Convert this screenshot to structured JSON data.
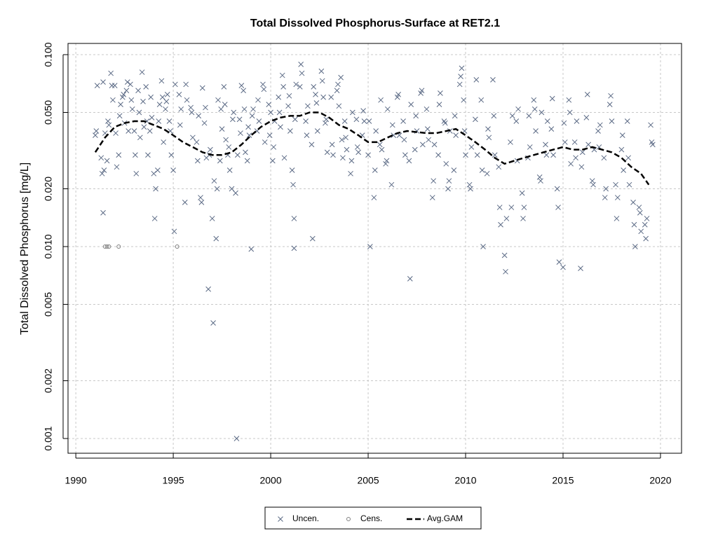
{
  "chart_data": {
    "type": "scatter",
    "title": "Total Dissolved Phosphorus-Surface at RET2.1",
    "y_label": "Total Dissolved Phosphorus [mg/L]",
    "log_y": true,
    "grid": true,
    "legend": "bottom",
    "xlim": [
      1989.6,
      2021.08
    ],
    "ylim": [
      0.000838,
      0.1144
    ],
    "xticks": [
      1990,
      1995,
      2000,
      2005,
      2010,
      2015,
      2020
    ],
    "yticks": [
      {
        "value": 0.1,
        "label": "0.100"
      },
      {
        "value": 0.05,
        "label": "0.050"
      },
      {
        "value": 0.02,
        "label": "0.020"
      },
      {
        "value": 0.01,
        "label": "0.010"
      },
      0.005,
      0.002,
      0.001
    ],
    "series": [
      {
        "name": "Uncen.",
        "marker": "x",
        "color": "#5b6a85",
        "x": [
          1991.0,
          1991.05,
          1991.1,
          1991.3,
          1991.35,
          1991.4,
          1991.4,
          1991.45,
          1991.5,
          1991.6,
          1991.65,
          1991.7,
          1991.8,
          1991.85,
          1991.9,
          1992.0,
          1992.05,
          1992.1,
          1992.2,
          1992.25,
          1992.3,
          1992.4,
          1992.45,
          1992.5,
          1992.6,
          1992.65,
          1992.7,
          1992.8,
          1992.85,
          1992.9,
          1993.0,
          1993.05,
          1993.1,
          1993.2,
          1993.25,
          1993.3,
          1993.4,
          1993.45,
          1993.5,
          1993.6,
          1993.65,
          1993.7,
          1993.8,
          1993.85,
          1993.9,
          1994.0,
          1994.05,
          1994.1,
          1994.2,
          1994.25,
          1994.3,
          1994.4,
          1994.45,
          1994.5,
          1994.6,
          1994.65,
          1994.7,
          1994.8,
          1994.85,
          1994.9,
          1995.0,
          1995.05,
          1995.1,
          1995.3,
          1995.35,
          1995.4,
          1995.6,
          1995.65,
          1995.7,
          1995.9,
          1995.95,
          1996.0,
          1996.2,
          1996.25,
          1996.3,
          1996.4,
          1996.45,
          1996.5,
          1996.6,
          1996.65,
          1996.7,
          1996.8,
          1996.85,
          1996.9,
          1997.0,
          1997.05,
          1997.1,
          1997.2,
          1997.25,
          1997.3,
          1997.4,
          1997.45,
          1997.5,
          1997.6,
          1997.65,
          1997.7,
          1997.8,
          1997.85,
          1997.9,
          1998.0,
          1998.05,
          1998.1,
          1998.2,
          1998.25,
          1998.3,
          1998.4,
          1998.45,
          1998.5,
          1998.6,
          1998.65,
          1998.7,
          1998.8,
          1998.85,
          1998.9,
          1999.0,
          1999.05,
          1999.1,
          1999.3,
          1999.35,
          1999.4,
          1999.6,
          1999.65,
          1999.7,
          1999.9,
          1999.95,
          2000.0,
          2000.1,
          2000.15,
          2000.2,
          2000.4,
          2000.45,
          2000.5,
          2000.6,
          2000.65,
          2000.7,
          2000.9,
          2000.95,
          2001.0,
          2001.1,
          2001.15,
          2001.2,
          2001.2,
          2001.25,
          2001.3,
          2001.5,
          2001.55,
          2001.6,
          2001.8,
          2001.85,
          2001.9,
          2002.1,
          2002.15,
          2002.2,
          2002.3,
          2002.35,
          2002.4,
          2002.6,
          2002.65,
          2002.7,
          2002.8,
          2002.85,
          2002.9,
          2003.1,
          2003.15,
          2003.2,
          2003.4,
          2003.45,
          2003.5,
          2003.6,
          2003.65,
          2003.7,
          2003.8,
          2003.85,
          2003.9,
          2004.1,
          2004.15,
          2004.2,
          2004.4,
          2004.45,
          2004.5,
          2004.7,
          2004.75,
          2004.8,
          2005.0,
          2005.05,
          2005.1,
          2005.3,
          2005.35,
          2005.4,
          2005.6,
          2005.65,
          2005.7,
          2005.9,
          2005.95,
          2006.0,
          2006.2,
          2006.25,
          2006.3,
          2006.5,
          2006.55,
          2006.6,
          2006.8,
          2006.85,
          2006.9,
          2007.1,
          2007.15,
          2007.2,
          2007.4,
          2007.45,
          2007.5,
          2007.7,
          2007.75,
          2007.8,
          2008.0,
          2008.05,
          2008.1,
          2008.3,
          2008.35,
          2008.4,
          2008.6,
          2008.65,
          2008.7,
          2008.9,
          2008.95,
          2009.0,
          2009.1,
          2009.15,
          2009.2,
          2009.4,
          2009.45,
          2009.5,
          2009.7,
          2009.75,
          2009.8,
          2009.9,
          2009.95,
          2010.0,
          2010.2,
          2010.25,
          2010.3,
          2010.5,
          2010.55,
          2010.6,
          2010.8,
          2010.85,
          2010.9,
          2011.1,
          2011.15,
          2011.2,
          2011.4,
          2011.45,
          2011.5,
          2011.7,
          2011.75,
          2011.8,
          2012.0,
          2012.05,
          2012.1,
          2012.3,
          2012.35,
          2012.4,
          2012.6,
          2012.65,
          2012.7,
          2012.9,
          2012.95,
          2013.0,
          2013.2,
          2013.25,
          2013.3,
          2013.5,
          2013.55,
          2013.6,
          2013.8,
          2013.85,
          2013.9,
          2014.1,
          2014.15,
          2014.2,
          2014.4,
          2014.45,
          2014.5,
          2014.7,
          2014.75,
          2014.8,
          2015.0,
          2015.05,
          2015.1,
          2015.3,
          2015.35,
          2015.4,
          2015.6,
          2015.65,
          2015.7,
          2015.9,
          2015.95,
          2016.0,
          2016.2,
          2016.25,
          2016.3,
          2016.5,
          2016.55,
          2016.6,
          2016.8,
          2016.85,
          2016.9,
          2017.1,
          2017.15,
          2017.2,
          2017.4,
          2017.45,
          2017.5,
          2017.7,
          2017.75,
          2017.8,
          2018.0,
          2018.05,
          2018.1,
          2018.3,
          2018.35,
          2018.4,
          2018.6,
          2018.65,
          2018.7,
          2018.9,
          2018.95,
          2019.0,
          2019.2,
          2019.25,
          2019.3,
          2019.5,
          2019.55,
          2019.6
        ],
        "values": [
          0.038,
          0.04,
          0.069,
          0.029,
          0.024,
          0.015,
          0.072,
          0.025,
          0.039,
          0.028,
          0.045,
          0.043,
          0.08,
          0.069,
          0.058,
          0.069,
          0.039,
          0.026,
          0.03,
          0.048,
          0.055,
          0.06,
          0.062,
          0.044,
          0.065,
          0.072,
          0.04,
          0.07,
          0.058,
          0.052,
          0.04,
          0.03,
          0.024,
          0.065,
          0.05,
          0.037,
          0.081,
          0.057,
          0.042,
          0.068,
          0.045,
          0.03,
          0.04,
          0.06,
          0.047,
          0.024,
          0.014,
          0.02,
          0.025,
          0.045,
          0.055,
          0.073,
          0.06,
          0.035,
          0.052,
          0.057,
          0.062,
          0.045,
          0.04,
          0.03,
          0.025,
          0.012,
          0.07,
          0.062,
          0.043,
          0.052,
          0.017,
          0.07,
          0.058,
          0.053,
          0.05,
          0.037,
          0.035,
          0.028,
          0.048,
          0.018,
          0.017,
          0.067,
          0.044,
          0.053,
          0.029,
          0.006,
          0.03,
          0.032,
          0.014,
          0.004,
          0.022,
          0.011,
          0.02,
          0.058,
          0.028,
          0.052,
          0.041,
          0.068,
          0.055,
          0.036,
          0.03,
          0.033,
          0.025,
          0.02,
          0.046,
          0.05,
          0.019,
          0.001,
          0.03,
          0.046,
          0.039,
          0.069,
          0.065,
          0.052,
          0.031,
          0.028,
          0.042,
          0.038,
          0.0097,
          0.048,
          0.052,
          0.04,
          0.058,
          0.045,
          0.07,
          0.066,
          0.035,
          0.055,
          0.038,
          0.05,
          0.028,
          0.033,
          0.045,
          0.06,
          0.05,
          0.042,
          0.078,
          0.068,
          0.029,
          0.054,
          0.061,
          0.04,
          0.025,
          0.021,
          0.0098,
          0.014,
          0.046,
          0.07,
          0.068,
          0.089,
          0.08,
          0.045,
          0.038,
          0.054,
          0.034,
          0.011,
          0.068,
          0.062,
          0.056,
          0.04,
          0.082,
          0.073,
          0.06,
          0.044,
          0.046,
          0.031,
          0.06,
          0.034,
          0.03,
          0.065,
          0.07,
          0.054,
          0.076,
          0.036,
          0.029,
          0.045,
          0.037,
          0.032,
          0.024,
          0.028,
          0.05,
          0.046,
          0.033,
          0.031,
          0.038,
          0.051,
          0.045,
          0.03,
          0.045,
          0.01,
          0.018,
          0.025,
          0.04,
          0.034,
          0.058,
          0.032,
          0.027,
          0.028,
          0.052,
          0.021,
          0.043,
          0.038,
          0.06,
          0.062,
          0.038,
          0.045,
          0.036,
          0.03,
          0.028,
          0.0068,
          0.055,
          0.032,
          0.048,
          0.04,
          0.063,
          0.065,
          0.034,
          0.052,
          0.041,
          0.036,
          0.018,
          0.022,
          0.034,
          0.03,
          0.055,
          0.063,
          0.045,
          0.044,
          0.027,
          0.02,
          0.022,
          0.04,
          0.025,
          0.048,
          0.038,
          0.07,
          0.077,
          0.085,
          0.058,
          0.04,
          0.03,
          0.021,
          0.02,
          0.033,
          0.046,
          0.074,
          0.03,
          0.058,
          0.025,
          0.01,
          0.024,
          0.041,
          0.037,
          0.074,
          0.048,
          0.03,
          0.026,
          0.016,
          0.013,
          0.009,
          0.0074,
          0.014,
          0.035,
          0.016,
          0.048,
          0.045,
          0.028,
          0.052,
          0.019,
          0.014,
          0.016,
          0.029,
          0.048,
          0.033,
          0.058,
          0.052,
          0.04,
          0.023,
          0.022,
          0.05,
          0.034,
          0.03,
          0.045,
          0.041,
          0.059,
          0.03,
          0.02,
          0.016,
          0.0083,
          0.0078,
          0.044,
          0.035,
          0.058,
          0.05,
          0.027,
          0.035,
          0.029,
          0.045,
          0.0077,
          0.026,
          0.031,
          0.047,
          0.062,
          0.034,
          0.022,
          0.021,
          0.032,
          0.04,
          0.033,
          0.043,
          0.029,
          0.018,
          0.02,
          0.055,
          0.061,
          0.045,
          0.021,
          0.014,
          0.018,
          0.032,
          0.038,
          0.025,
          0.045,
          0.029,
          0.021,
          0.017,
          0.013,
          0.01,
          0.016,
          0.015,
          0.012,
          0.013,
          0.011,
          0.014,
          0.043,
          0.035,
          0.034
        ]
      },
      {
        "name": "Cens.",
        "marker": "circle",
        "color": "#808080",
        "x": [
          1991.5,
          1991.6,
          1991.7,
          1992.2,
          1995.2
        ],
        "values": [
          0.01,
          0.01,
          0.01,
          0.01,
          0.01
        ]
      },
      {
        "name": "Avg.GAM",
        "marker": "line",
        "color": "#000000",
        "x": [
          1991,
          1991.5,
          1992,
          1992.5,
          1993,
          1993.5,
          1994,
          1994.5,
          1995,
          1995.5,
          1996,
          1996.5,
          1997,
          1997.5,
          1998,
          1998.5,
          1999,
          1999.5,
          2000,
          2000.5,
          2001,
          2001.5,
          2002,
          2002.5,
          2003,
          2003.5,
          2004,
          2004.5,
          2005,
          2005.5,
          2006,
          2006.5,
          2007,
          2008,
          2008.5,
          2009,
          2009.5,
          2010,
          2010.5,
          2011,
          2011.5,
          2012,
          2012.5,
          2013,
          2013.5,
          2014,
          2014.5,
          2015,
          2015.5,
          2016,
          2016.5,
          2017,
          2017.5,
          2018,
          2018.5,
          2019,
          2019.4
        ],
        "values": [
          0.031,
          0.037,
          0.042,
          0.044,
          0.045,
          0.045,
          0.043,
          0.041,
          0.038,
          0.035,
          0.033,
          0.031,
          0.03,
          0.03,
          0.031,
          0.034,
          0.038,
          0.042,
          0.045,
          0.047,
          0.048,
          0.048,
          0.05,
          0.05,
          0.047,
          0.043,
          0.041,
          0.038,
          0.035,
          0.035,
          0.037,
          0.039,
          0.04,
          0.039,
          0.039,
          0.04,
          0.041,
          0.038,
          0.035,
          0.032,
          0.029,
          0.027,
          0.028,
          0.029,
          0.03,
          0.031,
          0.032,
          0.033,
          0.032,
          0.032,
          0.033,
          0.032,
          0.031,
          0.029,
          0.026,
          0.024,
          0.021
        ]
      }
    ]
  }
}
